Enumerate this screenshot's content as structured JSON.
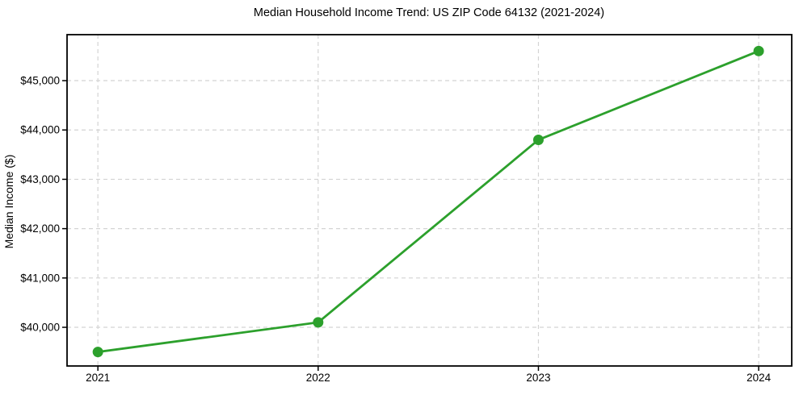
{
  "chart_data": {
    "type": "line",
    "title": "Median Household Income Trend: US ZIP Code 64132 (2021-2024)",
    "xlabel": "",
    "ylabel": "Median Income ($)",
    "x": [
      2021,
      2022,
      2023,
      2024
    ],
    "x_tick_labels": [
      "2021",
      "2022",
      "2023",
      "2024"
    ],
    "series": [
      {
        "name": "Median Household Income",
        "values": [
          39500,
          40100,
          43800,
          45600
        ]
      }
    ],
    "y_ticks": {
      "values": [
        40000,
        41000,
        42000,
        43000,
        44000,
        45000
      ],
      "labels": [
        "$40,000",
        "$41,000",
        "$42,000",
        "$43,000",
        "$44,000",
        "$45,000"
      ]
    },
    "xlim": [
      2020.86,
      2024.15
    ],
    "ylim": [
      39216,
      45932
    ],
    "grid": true,
    "grid_style": "dashed",
    "legend": "none",
    "colors": {
      "line": "#2ca02c",
      "marker": "#2ca02c",
      "grid": "#d4d4d4",
      "axis": "#000000",
      "text": "#000000",
      "background": "#ffffff"
    }
  }
}
